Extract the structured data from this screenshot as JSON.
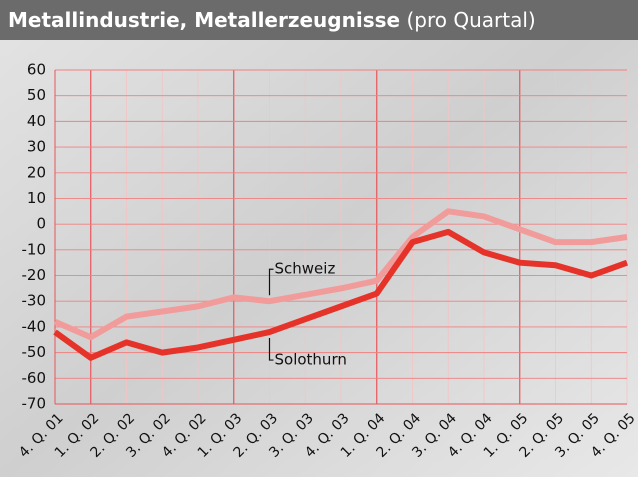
{
  "chart_data": {
    "type": "line",
    "title": "Metallindustrie, Metallerzeugnisse",
    "subtitle": "(pro Quartal)",
    "categories": [
      "4. Q. 01",
      "1. Q. 02",
      "2. Q. 02",
      "3. Q. 02",
      "4. Q. 02",
      "1. Q. 03",
      "2. Q. 03",
      "3. Q. 03",
      "4. Q. 03",
      "1. Q. 04",
      "2. Q. 04",
      "3. Q. 04",
      "4. Q. 04",
      "1. Q. 05",
      "2. Q. 05",
      "3. Q. 05",
      "4. Q. 05"
    ],
    "series": [
      {
        "name": "Schweiz",
        "color": "#f19c9a",
        "values": [
          -38,
          -44,
          -36,
          -34,
          -32,
          -28.5,
          -30,
          -27.5,
          -25,
          -22,
          -5,
          5,
          3,
          -2,
          -7,
          -7,
          -5
        ]
      },
      {
        "name": "Solothurn",
        "color": "#e6332a",
        "values": [
          -42,
          -52,
          -46,
          -50,
          -48,
          -45,
          -42,
          -37,
          -32,
          -27,
          -7,
          -3,
          -11,
          -15,
          -16,
          -20,
          -15
        ]
      }
    ],
    "ylim": [
      -70,
      60
    ],
    "yticks": [
      -70,
      -60,
      -50,
      -40,
      -30,
      -20,
      -10,
      0,
      10,
      20,
      30,
      40,
      50,
      60
    ],
    "grid": true
  }
}
